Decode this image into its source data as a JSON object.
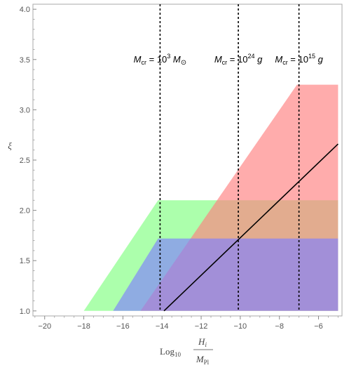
{
  "chart_data": {
    "type": "area",
    "xlim": [
      -20.6,
      -4.8
    ],
    "ylim": [
      0.95,
      4.05
    ],
    "x_ticks": [
      -20,
      -18,
      -16,
      -14,
      -12,
      -10,
      -8,
      -6
    ],
    "x_tick_labels": [
      "−20",
      "−18",
      "−16",
      "−14",
      "−12",
      "−10",
      "−8",
      "−6"
    ],
    "y_ticks": [
      1.0,
      1.5,
      2.0,
      2.5,
      3.0,
      3.5,
      4.0
    ],
    "y_tick_labels": [
      "1.0",
      "1.5",
      "2.0",
      "2.5",
      "3.0",
      "3.5",
      "4.0"
    ],
    "ylabel": "ξ",
    "xlabel": {
      "log": "Log",
      "log_sub": "10",
      "numerator": "H",
      "numerator_sub": "i",
      "denominator": "M",
      "denominator_sub": "Pl"
    },
    "regions": [
      {
        "color": "#80ff80",
        "opacity": 0.65,
        "polygon": [
          [
            -18.0,
            1.0
          ],
          [
            -14.2,
            2.1
          ],
          [
            -5.0,
            2.1
          ],
          [
            -5.0,
            1.0
          ]
        ]
      },
      {
        "color": "#ff8080",
        "opacity": 0.65,
        "polygon": [
          [
            -15.1,
            1.0
          ],
          [
            -7.1,
            3.25
          ],
          [
            -5.0,
            3.25
          ],
          [
            -5.0,
            1.0
          ]
        ]
      },
      {
        "color": "#8080ff",
        "opacity": 0.65,
        "polygon": [
          [
            -16.5,
            1.0
          ],
          [
            -14.2,
            1.72
          ],
          [
            -5.0,
            1.72
          ],
          [
            -5.0,
            1.0
          ]
        ]
      }
    ],
    "line": {
      "color": "#000000",
      "points": [
        [
          -13.9,
          1.0
        ],
        [
          -5.0,
          2.66
        ]
      ]
    },
    "vlines": [
      {
        "x": -14.1,
        "label": {
          "M": "M",
          "sub": "cr",
          "eq": " = 10",
          "exp": "3",
          "unit": " M",
          "unit_sym": "⊙"
        }
      },
      {
        "x": -10.1,
        "label": {
          "M": "M",
          "sub": "cr",
          "eq": " = 10",
          "exp": "24",
          "unit": " g",
          "unit_sym": ""
        }
      },
      {
        "x": -7.0,
        "label": {
          "M": "M",
          "sub": "cr",
          "eq": " = 10",
          "exp": "15",
          "unit": " g",
          "unit_sym": ""
        }
      }
    ]
  }
}
